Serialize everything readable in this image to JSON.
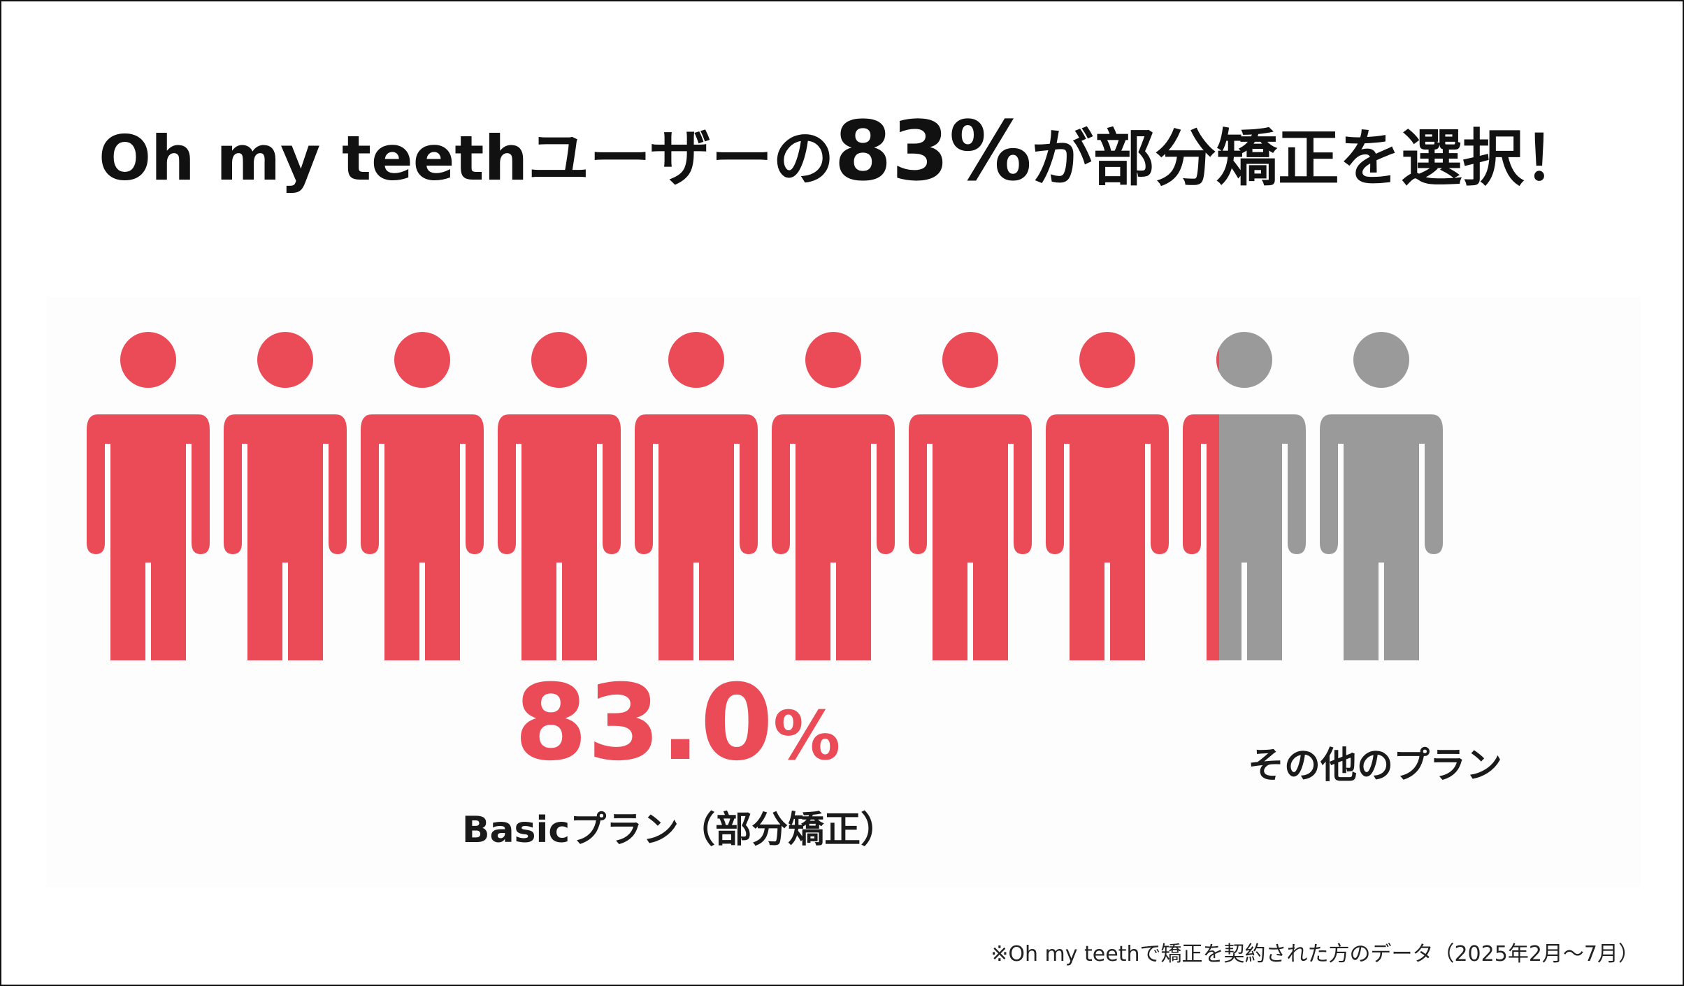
{
  "title": {
    "prefix": "Oh my teethユーザーの",
    "number": "83%",
    "suffix": "が部分矯正を選択！"
  },
  "chart_data": {
    "type": "pictograph",
    "total_icons": 10,
    "values": [
      83.0,
      17.0
    ],
    "categories": [
      "Basicプラン（部分矯正）",
      "その他のプラン"
    ],
    "colors": {
      "basic": "#ea4b57",
      "other": "#9a9a9a"
    },
    "value_label": "83.0",
    "value_unit": "%"
  },
  "labels": {
    "basic": "Basicプラン（部分矯正）",
    "other": "その他のプラン"
  },
  "footnote": "※Oh my teethで矯正を契約された方のデータ（2025年2月〜7月）"
}
